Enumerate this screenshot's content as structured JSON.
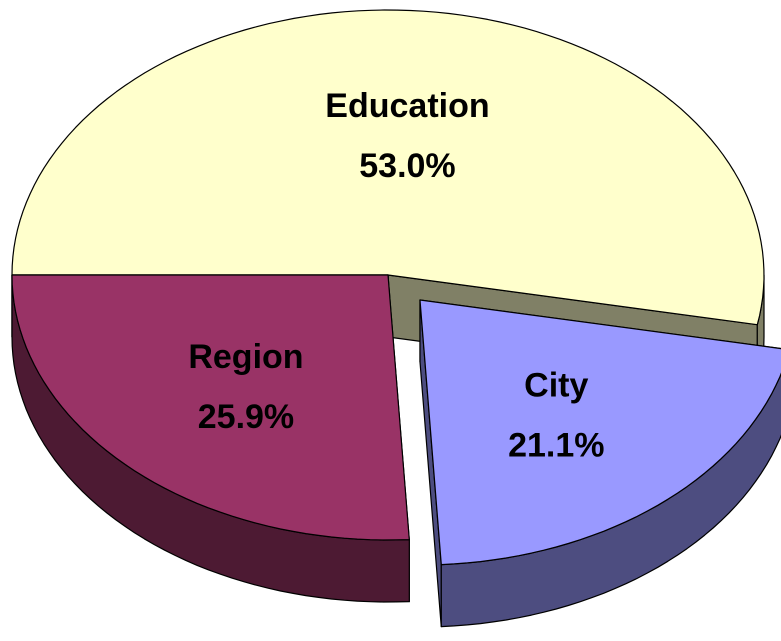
{
  "chart_data": {
    "type": "pie",
    "categories": [
      "Education",
      "City",
      "Region"
    ],
    "values": [
      53.0,
      21.1,
      25.9
    ],
    "value_labels": [
      "53.0%",
      "21.1%",
      "25.9%"
    ],
    "colors": [
      "#ffffcc",
      "#9999ff",
      "#993366"
    ],
    "exploded": [
      false,
      true,
      false
    ]
  }
}
